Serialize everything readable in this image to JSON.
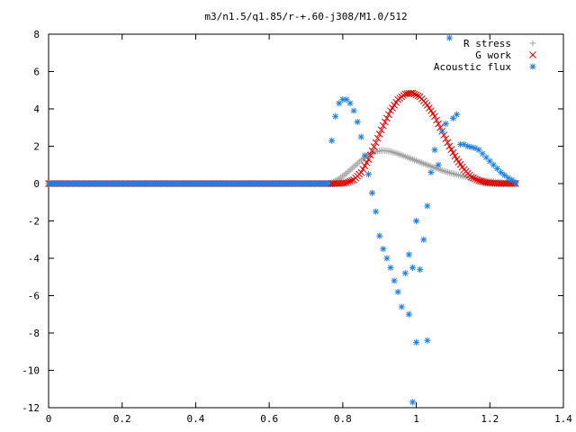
{
  "chart_data": {
    "type": "scatter",
    "title": "m3/n1.5/q1.85/r-+.60-j308/M1.0/512",
    "xlabel": "",
    "ylabel": "",
    "xlim": [
      0,
      1.4
    ],
    "ylim": [
      -12,
      8
    ],
    "x_ticks": [
      "0",
      "0.2",
      "0.4",
      "0.6",
      "0.8",
      "1",
      "1.2",
      "1.4"
    ],
    "y_ticks": [
      "8",
      "6",
      "4",
      "2",
      "0",
      "-2",
      "-4",
      "-6",
      "-8",
      "-10",
      "-12"
    ],
    "grid": false,
    "legend_position": "top-right",
    "series": [
      {
        "name": "R stress",
        "marker": "+",
        "color": "#a0a0a0",
        "x": [
          0.77,
          0.79,
          0.81,
          0.83,
          0.85,
          0.87,
          0.89,
          0.91,
          0.93,
          0.95,
          0.97,
          0.99,
          1.01,
          1.03,
          1.05,
          1.07,
          1.09,
          1.11,
          1.13,
          1.15,
          1.17,
          1.19,
          1.21,
          1.23,
          1.25,
          1.27
        ],
        "y": [
          0.05,
          0.25,
          0.55,
          0.9,
          1.25,
          1.55,
          1.72,
          1.78,
          1.72,
          1.6,
          1.45,
          1.3,
          1.15,
          1.0,
          0.85,
          0.7,
          0.58,
          0.48,
          0.38,
          0.3,
          0.22,
          0.15,
          0.1,
          0.06,
          0.03,
          0.01
        ]
      },
      {
        "name": "G work",
        "marker": "x",
        "color": "#e00000",
        "x": [
          0.77,
          0.79,
          0.81,
          0.83,
          0.85,
          0.87,
          0.89,
          0.91,
          0.93,
          0.95,
          0.97,
          0.99,
          1.01,
          1.03,
          1.05,
          1.07,
          1.09,
          1.11,
          1.13,
          1.15,
          1.17,
          1.19,
          1.21,
          1.23,
          1.25,
          1.27
        ],
        "y": [
          0.0,
          0.0,
          0.05,
          0.2,
          0.6,
          1.3,
          2.2,
          3.1,
          3.9,
          4.5,
          4.8,
          4.85,
          4.65,
          4.2,
          3.6,
          2.8,
          2.0,
          1.3,
          0.75,
          0.35,
          0.15,
          0.05,
          0.02,
          0.0,
          0.0,
          0.0
        ]
      },
      {
        "name": "Acoustic flux",
        "marker": "*",
        "color": "#2080e0",
        "x": [
          0.77,
          0.78,
          0.79,
          0.8,
          0.81,
          0.82,
          0.83,
          0.84,
          0.85,
          0.86,
          0.87,
          0.88,
          0.89,
          0.9,
          0.91,
          0.92,
          0.93,
          0.94,
          0.95,
          0.96,
          0.97,
          0.98,
          0.99,
          1.0,
          1.01,
          1.02,
          1.03,
          1.04,
          1.05,
          1.06,
          1.07,
          1.08,
          1.09,
          1.1,
          1.11,
          1.12,
          1.13,
          1.14,
          1.15,
          1.16,
          1.17,
          1.18,
          1.19,
          1.2,
          1.21,
          1.22,
          1.23,
          1.24,
          1.25,
          1.26,
          1.27
        ],
        "y": [
          2.3,
          3.6,
          4.3,
          4.5,
          4.5,
          4.3,
          3.9,
          3.3,
          2.5,
          1.5,
          0.5,
          -0.5,
          -1.5,
          -2.8,
          -3.5,
          -4.0,
          -4.5,
          -5.2,
          -5.8,
          -6.6,
          -4.8,
          -3.8,
          -4.5,
          -2.0,
          -4.6,
          -3.0,
          -1.2,
          0.6,
          1.8,
          1.0,
          2.8,
          3.2,
          7.8,
          3.5,
          3.7,
          2.1,
          2.1,
          2.0,
          1.95,
          1.9,
          1.8,
          1.6,
          1.4,
          1.2,
          1.0,
          0.8,
          0.6,
          0.45,
          0.3,
          0.2,
          0.05
        ]
      }
    ],
    "annotations": [
      {
        "x": 0.99,
        "y": -11.7
      },
      {
        "x": 1.0,
        "y": -8.5
      },
      {
        "x": 1.03,
        "y": -8.4
      },
      {
        "x": 0.98,
        "y": -7.0
      }
    ]
  }
}
